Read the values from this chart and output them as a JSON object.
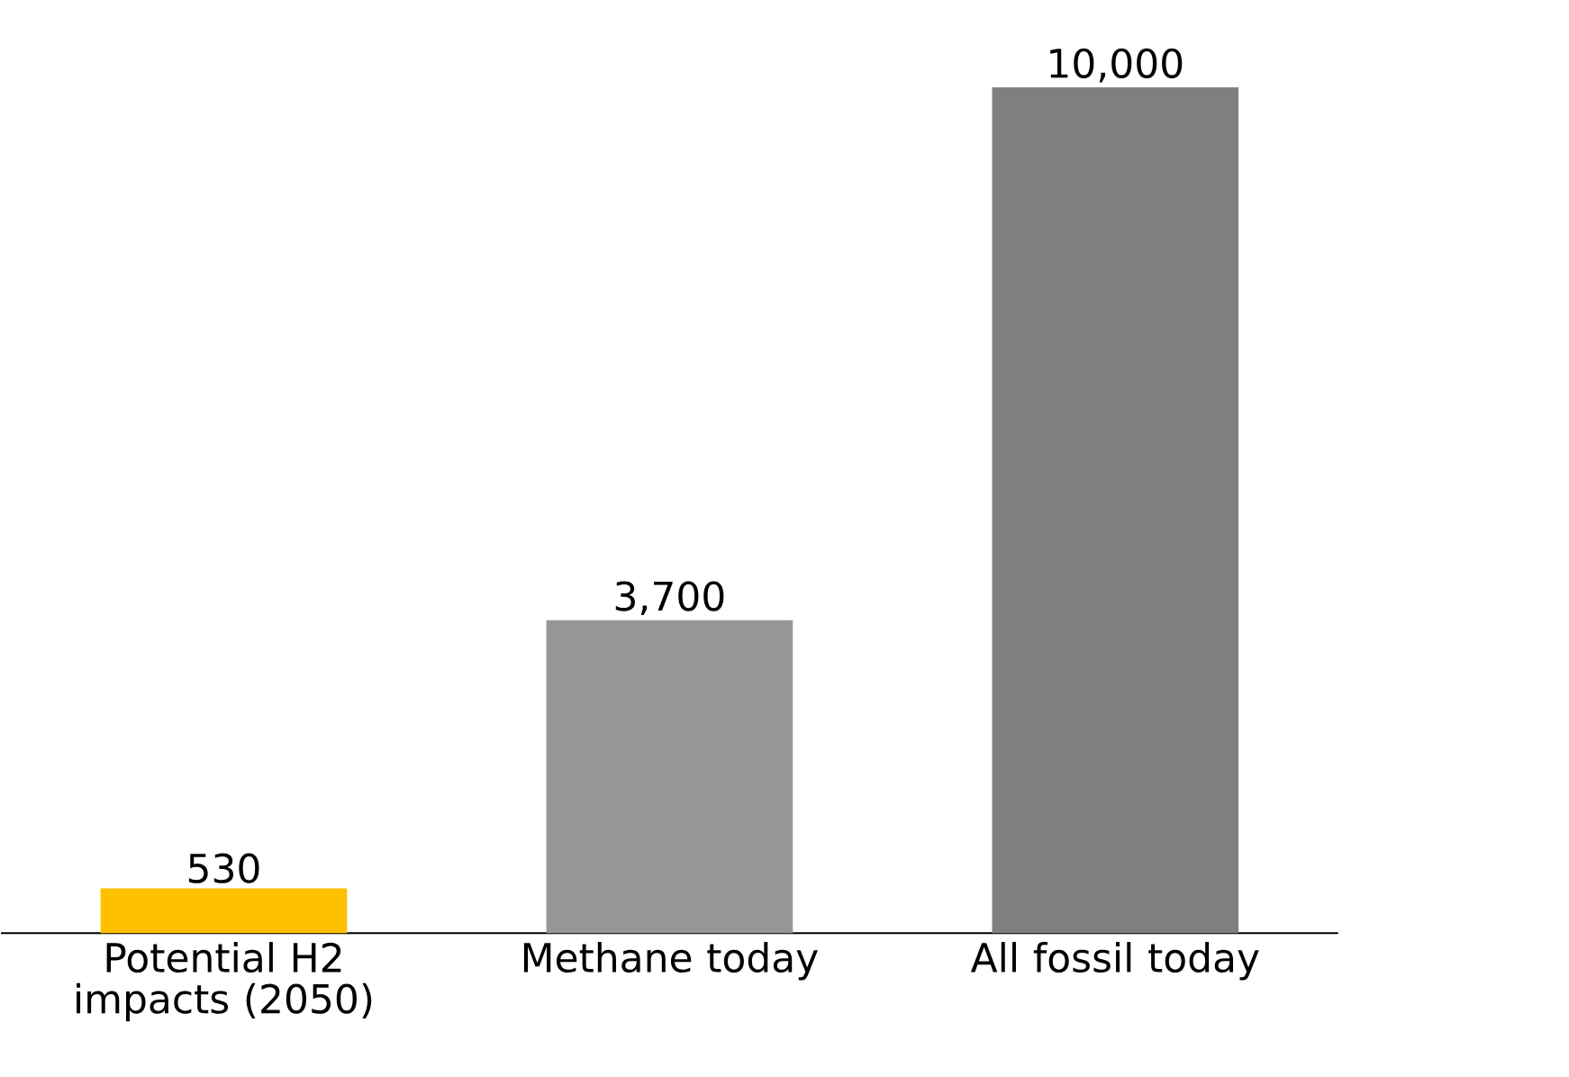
{
  "chart_data": {
    "type": "bar",
    "categories": [
      "Potential H2 impacts (2050)",
      "Methane today",
      "All fossil today"
    ],
    "values": [
      530,
      3700,
      10000
    ],
    "colors": [
      "#ffc000",
      "#969696",
      "#7f7f7f"
    ],
    "value_labels": [
      "530",
      "3,700",
      "10,000"
    ]
  }
}
